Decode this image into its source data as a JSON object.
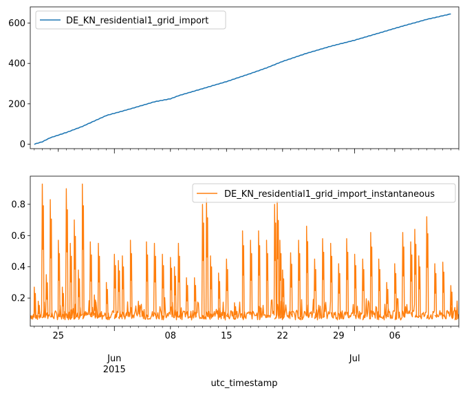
{
  "chart_data": [
    {
      "type": "line",
      "series": [
        {
          "name": "DE_KN_residential1_grid_import",
          "color": "#1f77b4",
          "x": [
            "2015-05-22",
            "2015-05-23",
            "2015-05-24",
            "2015-05-26",
            "2015-05-28",
            "2015-05-31",
            "2015-06-03",
            "2015-06-06",
            "2015-06-08",
            "2015-06-09",
            "2015-06-12",
            "2015-06-15",
            "2015-06-18",
            "2015-06-20",
            "2015-06-22",
            "2015-06-25",
            "2015-06-28",
            "2015-07-01",
            "2015-07-04",
            "2015-07-07",
            "2015-07-10",
            "2015-07-13"
          ],
          "values": [
            0,
            12,
            32,
            58,
            88,
            142,
            175,
            210,
            225,
            240,
            275,
            310,
            350,
            378,
            410,
            450,
            485,
            515,
            550,
            585,
            618,
            645
          ]
        }
      ],
      "yticks": [
        "0",
        "200",
        "400",
        "600"
      ],
      "ylim": [
        -22,
        680
      ],
      "legend_position": "top-left"
    },
    {
      "type": "line",
      "series": [
        {
          "name": "DE_KN_residential1_grid_import_instantaneous",
          "color": "#ff7f0e",
          "baseline": 0.08,
          "spikes": [
            {
              "x": "2015-05-22",
              "y": 0.27
            },
            {
              "x": "2015-05-22T12:00",
              "y": 0.18
            },
            {
              "x": "2015-05-23",
              "y": 0.93
            },
            {
              "x": "2015-05-23T12:00",
              "y": 0.35
            },
            {
              "x": "2015-05-24",
              "y": 0.83
            },
            {
              "x": "2015-05-25",
              "y": 0.57
            },
            {
              "x": "2015-05-25T12:00",
              "y": 0.27
            },
            {
              "x": "2015-05-26",
              "y": 0.9
            },
            {
              "x": "2015-05-26T12:00",
              "y": 0.55
            },
            {
              "x": "2015-05-27",
              "y": 0.7
            },
            {
              "x": "2015-05-27T12:00",
              "y": 0.38
            },
            {
              "x": "2015-05-28",
              "y": 0.93
            },
            {
              "x": "2015-05-29",
              "y": 0.56
            },
            {
              "x": "2015-05-29T12:00",
              "y": 0.22
            },
            {
              "x": "2015-05-30",
              "y": 0.55
            },
            {
              "x": "2015-05-31",
              "y": 0.3
            },
            {
              "x": "2015-06-01",
              "y": 0.48
            },
            {
              "x": "2015-06-01T12:00",
              "y": 0.44
            },
            {
              "x": "2015-06-02",
              "y": 0.47
            },
            {
              "x": "2015-06-03",
              "y": 0.57
            },
            {
              "x": "2015-06-04",
              "y": 0.18
            },
            {
              "x": "2015-06-05",
              "y": 0.56
            },
            {
              "x": "2015-06-06",
              "y": 0.55
            },
            {
              "x": "2015-06-07",
              "y": 0.48
            },
            {
              "x": "2015-06-08",
              "y": 0.46
            },
            {
              "x": "2015-06-08T12:00",
              "y": 0.4
            },
            {
              "x": "2015-06-09",
              "y": 0.55
            },
            {
              "x": "2015-06-10",
              "y": 0.33
            },
            {
              "x": "2015-06-11",
              "y": 0.33
            },
            {
              "x": "2015-06-12",
              "y": 0.8
            },
            {
              "x": "2015-06-12T12:00",
              "y": 0.84
            },
            {
              "x": "2015-06-13",
              "y": 0.47
            },
            {
              "x": "2015-06-14",
              "y": 0.36
            },
            {
              "x": "2015-06-15",
              "y": 0.45
            },
            {
              "x": "2015-06-16",
              "y": 0.17
            },
            {
              "x": "2015-06-17",
              "y": 0.63
            },
            {
              "x": "2015-06-18",
              "y": 0.57
            },
            {
              "x": "2015-06-19",
              "y": 0.63
            },
            {
              "x": "2015-06-20",
              "y": 0.57
            },
            {
              "x": "2015-06-21",
              "y": 0.8
            },
            {
              "x": "2015-06-21T08:00",
              "y": 0.82
            },
            {
              "x": "2015-06-21T16:00",
              "y": 0.57
            },
            {
              "x": "2015-06-22",
              "y": 0.38
            },
            {
              "x": "2015-06-23",
              "y": 0.49
            },
            {
              "x": "2015-06-24",
              "y": 0.57
            },
            {
              "x": "2015-06-25",
              "y": 0.66
            },
            {
              "x": "2015-06-26",
              "y": 0.45
            },
            {
              "x": "2015-06-27",
              "y": 0.58
            },
            {
              "x": "2015-06-28",
              "y": 0.55
            },
            {
              "x": "2015-06-29",
              "y": 0.42
            },
            {
              "x": "2015-06-30",
              "y": 0.58
            },
            {
              "x": "2015-07-01",
              "y": 0.48
            },
            {
              "x": "2015-07-02",
              "y": 0.45
            },
            {
              "x": "2015-07-03",
              "y": 0.62
            },
            {
              "x": "2015-07-04",
              "y": 0.45
            },
            {
              "x": "2015-07-05",
              "y": 0.3
            },
            {
              "x": "2015-07-06",
              "y": 0.42
            },
            {
              "x": "2015-07-07",
              "y": 0.62
            },
            {
              "x": "2015-07-08",
              "y": 0.56
            },
            {
              "x": "2015-07-08T12:00",
              "y": 0.64
            },
            {
              "x": "2015-07-09",
              "y": 0.47
            },
            {
              "x": "2015-07-10",
              "y": 0.72
            },
            {
              "x": "2015-07-11",
              "y": 0.42
            },
            {
              "x": "2015-07-12",
              "y": 0.43
            },
            {
              "x": "2015-07-13",
              "y": 0.28
            },
            {
              "x": "2015-07-13T12:00",
              "y": 0.14
            }
          ]
        }
      ],
      "yticks": [
        "0.2",
        "0.4",
        "0.6",
        "0.8"
      ],
      "ylim": [
        0.02,
        0.98
      ],
      "legend_position": "top-right"
    }
  ],
  "shared_x": {
    "xlim": [
      "2015-05-21T12:00",
      "2015-07-14"
    ],
    "ticks": [
      {
        "date": "2015-05-25",
        "label": "25"
      },
      {
        "date": "2015-06-08",
        "label": "08"
      },
      {
        "date": "2015-06-15",
        "label": "15"
      },
      {
        "date": "2015-06-22",
        "label": "22"
      },
      {
        "date": "2015-06-29",
        "label": "29"
      },
      {
        "date": "2015-07-06",
        "label": "06"
      }
    ],
    "month_labels": [
      {
        "date": "2015-06-01",
        "label": "Jun",
        "sublabel": "2015"
      },
      {
        "date": "2015-07-01",
        "label": "Jul",
        "sublabel": ""
      }
    ],
    "xlabel": "utc_timestamp"
  }
}
